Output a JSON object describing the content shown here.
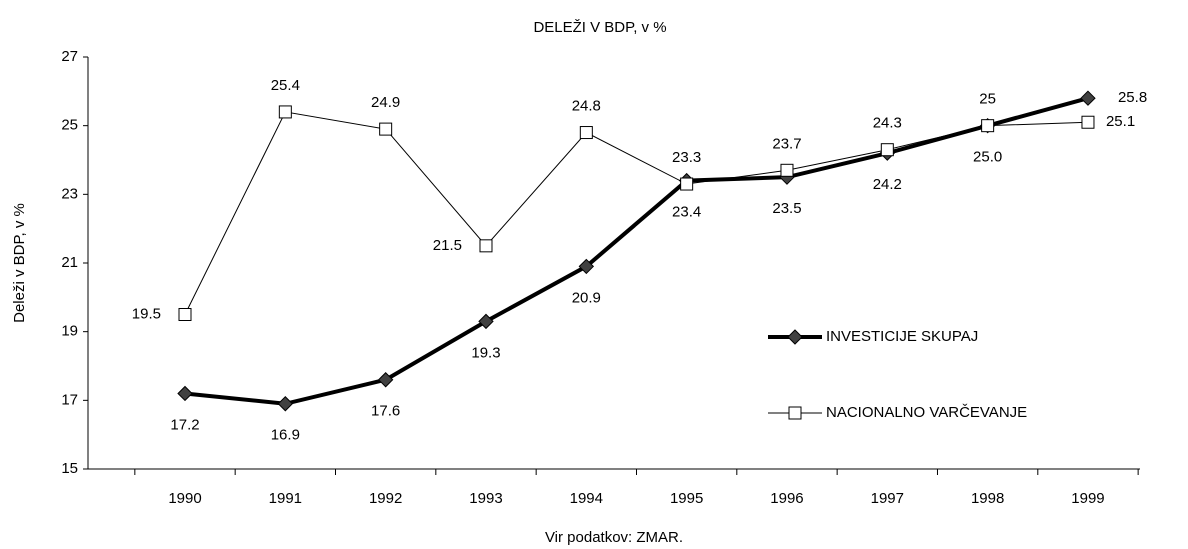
{
  "chart_data": {
    "type": "line",
    "title": "DELEŽI V BDP, v %",
    "x_label": "Vir podatkov: ZMAR.",
    "y_label": "Deleži v BDP, v %",
    "categories": [
      "1990",
      "1991",
      "1992",
      "1993",
      "1994",
      "1995",
      "1996",
      "1997",
      "1998",
      "1999"
    ],
    "series": [
      {
        "name": "INVESTICIJE SKUPAJ",
        "color": "#000000",
        "marker": "diamond",
        "values": [
          17.2,
          16.9,
          17.6,
          19.3,
          20.9,
          23.4,
          23.5,
          24.2,
          25.0,
          25.8
        ],
        "value_labels": [
          "17.2",
          "16.9",
          "17.6",
          "19.3",
          "20.9",
          "23.4",
          "23.5",
          "24.2",
          "25.0",
          "25.8"
        ]
      },
      {
        "name": "NACIONALNO VARČEVANJE",
        "color": "#000000",
        "marker": "square",
        "values": [
          19.5,
          25.4,
          24.9,
          21.5,
          24.8,
          23.3,
          23.7,
          24.3,
          25,
          25.1
        ]
      }
    ],
    "ylim": [
      15,
      27
    ],
    "yticks": [
      15,
      17,
      19,
      21,
      23,
      25,
      27
    ],
    "grid": false,
    "legend": "right"
  }
}
